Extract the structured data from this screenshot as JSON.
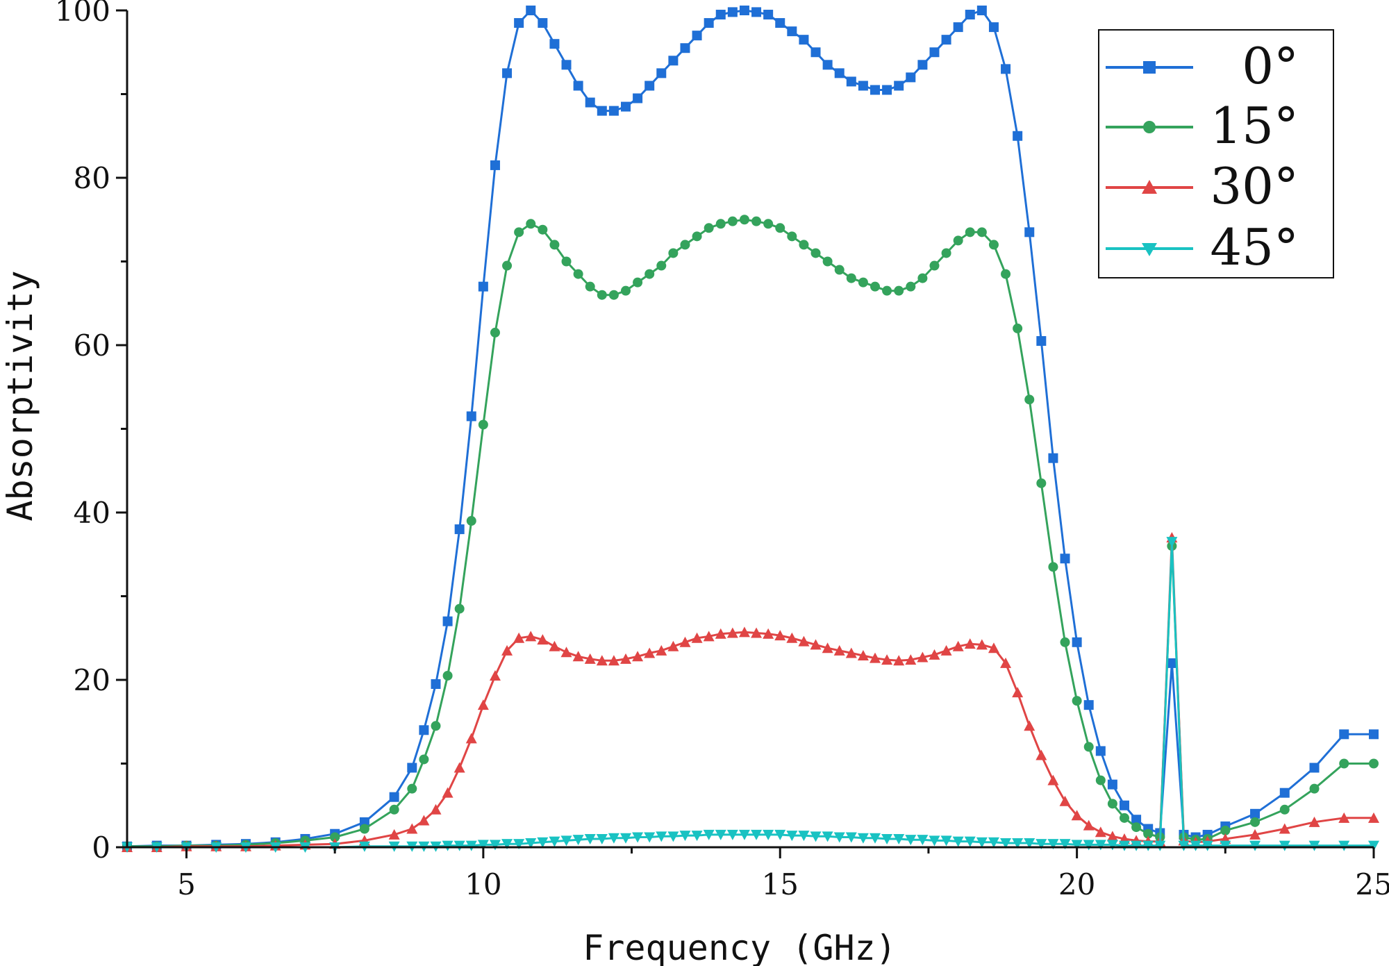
{
  "chart_data": {
    "type": "line",
    "title": "",
    "xlabel": "Frequency (GHz)",
    "ylabel": "Absorptivity",
    "xlim": [
      4,
      25
    ],
    "ylim": [
      0,
      100
    ],
    "xticks": [
      5,
      10,
      15,
      20,
      25
    ],
    "yticks": [
      0,
      20,
      40,
      60,
      80,
      100
    ],
    "legend_position": "top-right",
    "grid": false,
    "series": [
      {
        "name": "0°",
        "color": "#1f6fd6",
        "marker": "square",
        "x": [
          4.0,
          4.5,
          5.0,
          5.5,
          6.0,
          6.5,
          7.0,
          7.5,
          8.0,
          8.5,
          8.8,
          9.0,
          9.2,
          9.4,
          9.6,
          9.8,
          10.0,
          10.2,
          10.4,
          10.6,
          10.8,
          11.0,
          11.2,
          11.4,
          11.6,
          11.8,
          12.0,
          12.2,
          12.4,
          12.6,
          12.8,
          13.0,
          13.2,
          13.4,
          13.6,
          13.8,
          14.0,
          14.2,
          14.4,
          14.6,
          14.8,
          15.0,
          15.2,
          15.4,
          15.6,
          15.8,
          16.0,
          16.2,
          16.4,
          16.6,
          16.8,
          17.0,
          17.2,
          17.4,
          17.6,
          17.8,
          18.0,
          18.2,
          18.4,
          18.6,
          18.8,
          19.0,
          19.2,
          19.4,
          19.6,
          19.8,
          20.0,
          20.2,
          20.4,
          20.6,
          20.8,
          21.0,
          21.2,
          21.4,
          21.6,
          21.8,
          22.0,
          22.2,
          22.5,
          23.0,
          23.5,
          24.0,
          24.5,
          25.0
        ],
        "y": [
          0.1,
          0.2,
          0.2,
          0.3,
          0.4,
          0.6,
          1.0,
          1.6,
          3.0,
          6.0,
          9.5,
          14.0,
          19.5,
          27.0,
          38.0,
          51.5,
          67.0,
          81.5,
          92.5,
          98.5,
          100.0,
          98.5,
          96.0,
          93.5,
          91.0,
          89.0,
          88.0,
          88.0,
          88.5,
          89.5,
          91.0,
          92.5,
          94.0,
          95.5,
          97.0,
          98.5,
          99.5,
          99.8,
          100.0,
          99.8,
          99.5,
          98.5,
          97.5,
          96.5,
          95.0,
          93.5,
          92.5,
          91.5,
          91.0,
          90.5,
          90.5,
          91.0,
          92.0,
          93.5,
          95.0,
          96.5,
          98.0,
          99.5,
          100.0,
          98.0,
          93.0,
          85.0,
          73.5,
          60.5,
          46.5,
          34.5,
          24.5,
          17.0,
          11.5,
          7.5,
          5.0,
          3.3,
          2.2,
          1.7,
          22.0,
          1.5,
          1.2,
          1.5,
          2.5,
          4.0,
          6.5,
          9.5,
          13.5,
          13.5
        ],
        "y_note": "x/y arrays paired by index"
      },
      {
        "name": "15°",
        "color": "#34a35c",
        "marker": "circle",
        "x": [
          4.0,
          4.5,
          5.0,
          5.5,
          6.0,
          6.5,
          7.0,
          7.5,
          8.0,
          8.5,
          8.8,
          9.0,
          9.2,
          9.4,
          9.6,
          9.8,
          10.0,
          10.2,
          10.4,
          10.6,
          10.8,
          11.0,
          11.2,
          11.4,
          11.6,
          11.8,
          12.0,
          12.2,
          12.4,
          12.6,
          12.8,
          13.0,
          13.2,
          13.4,
          13.6,
          13.8,
          14.0,
          14.2,
          14.4,
          14.6,
          14.8,
          15.0,
          15.2,
          15.4,
          15.6,
          15.8,
          16.0,
          16.2,
          16.4,
          16.6,
          16.8,
          17.0,
          17.2,
          17.4,
          17.6,
          17.8,
          18.0,
          18.2,
          18.4,
          18.6,
          18.8,
          19.0,
          19.2,
          19.4,
          19.6,
          19.8,
          20.0,
          20.2,
          20.4,
          20.6,
          20.8,
          21.0,
          21.2,
          21.4,
          21.6,
          21.8,
          22.0,
          22.2,
          22.5,
          23.0,
          23.5,
          24.0,
          24.5,
          25.0
        ],
        "y": [
          0.1,
          0.1,
          0.2,
          0.2,
          0.3,
          0.5,
          0.8,
          1.2,
          2.2,
          4.5,
          7.0,
          10.5,
          14.5,
          20.5,
          28.5,
          39.0,
          50.5,
          61.5,
          69.5,
          73.5,
          74.5,
          73.8,
          72.0,
          70.0,
          68.5,
          67.0,
          66.0,
          66.0,
          66.5,
          67.5,
          68.5,
          69.5,
          71.0,
          72.0,
          73.0,
          74.0,
          74.5,
          74.8,
          75.0,
          74.8,
          74.5,
          74.0,
          73.0,
          72.0,
          71.0,
          70.0,
          69.0,
          68.0,
          67.5,
          67.0,
          66.5,
          66.5,
          67.0,
          68.0,
          69.5,
          71.0,
          72.5,
          73.5,
          73.5,
          72.0,
          68.5,
          62.0,
          53.5,
          43.5,
          33.5,
          24.5,
          17.5,
          12.0,
          8.0,
          5.2,
          3.5,
          2.4,
          1.6,
          1.2,
          36.0,
          1.2,
          0.9,
          1.0,
          2.0,
          3.0,
          4.5,
          7.0,
          10.0,
          10.0
        ]
      },
      {
        "name": "30°",
        "color": "#e04545",
        "marker": "triangle-up",
        "x": [
          4.0,
          4.5,
          5.0,
          5.5,
          6.0,
          6.5,
          7.0,
          7.5,
          8.0,
          8.5,
          8.8,
          9.0,
          9.2,
          9.4,
          9.6,
          9.8,
          10.0,
          10.2,
          10.4,
          10.6,
          10.8,
          11.0,
          11.2,
          11.4,
          11.6,
          11.8,
          12.0,
          12.2,
          12.4,
          12.6,
          12.8,
          13.0,
          13.2,
          13.4,
          13.6,
          13.8,
          14.0,
          14.2,
          14.4,
          14.6,
          14.8,
          15.0,
          15.2,
          15.4,
          15.6,
          15.8,
          16.0,
          16.2,
          16.4,
          16.6,
          16.8,
          17.0,
          17.2,
          17.4,
          17.6,
          17.8,
          18.0,
          18.2,
          18.4,
          18.6,
          18.8,
          19.0,
          19.2,
          19.4,
          19.6,
          19.8,
          20.0,
          20.2,
          20.4,
          20.6,
          20.8,
          21.0,
          21.2,
          21.4,
          21.6,
          21.8,
          22.0,
          22.2,
          22.5,
          23.0,
          23.5,
          24.0,
          24.5,
          25.0
        ],
        "y": [
          0.0,
          0.0,
          0.1,
          0.1,
          0.1,
          0.2,
          0.3,
          0.4,
          0.8,
          1.5,
          2.2,
          3.2,
          4.5,
          6.5,
          9.5,
          13.0,
          17.0,
          20.5,
          23.5,
          25.0,
          25.2,
          24.8,
          24.0,
          23.3,
          22.8,
          22.5,
          22.3,
          22.3,
          22.5,
          22.8,
          23.2,
          23.5,
          24.0,
          24.5,
          25.0,
          25.2,
          25.5,
          25.6,
          25.7,
          25.6,
          25.5,
          25.3,
          25.0,
          24.6,
          24.2,
          23.8,
          23.5,
          23.2,
          22.9,
          22.6,
          22.4,
          22.3,
          22.4,
          22.7,
          23.0,
          23.5,
          24.0,
          24.3,
          24.2,
          23.8,
          22.0,
          18.5,
          14.5,
          11.0,
          8.0,
          5.5,
          3.8,
          2.6,
          1.8,
          1.3,
          1.0,
          0.8,
          0.7,
          0.7,
          37.0,
          0.8,
          0.6,
          0.7,
          1.0,
          1.5,
          2.2,
          3.0,
          3.5,
          3.5
        ]
      },
      {
        "name": "45°",
        "color": "#19c2c2",
        "marker": "triangle-down",
        "x": [
          4.0,
          4.5,
          5.0,
          5.5,
          6.0,
          6.5,
          7.0,
          7.5,
          8.0,
          8.5,
          8.8,
          9.0,
          9.2,
          9.4,
          9.6,
          9.8,
          10.0,
          10.2,
          10.4,
          10.6,
          10.8,
          11.0,
          11.2,
          11.4,
          11.6,
          11.8,
          12.0,
          12.2,
          12.4,
          12.6,
          12.8,
          13.0,
          13.2,
          13.4,
          13.6,
          13.8,
          14.0,
          14.2,
          14.4,
          14.6,
          14.8,
          15.0,
          15.2,
          15.4,
          15.6,
          15.8,
          16.0,
          16.2,
          16.4,
          16.6,
          16.8,
          17.0,
          17.2,
          17.4,
          17.6,
          17.8,
          18.0,
          18.2,
          18.4,
          18.6,
          18.8,
          19.0,
          19.2,
          19.4,
          19.6,
          19.8,
          20.0,
          20.2,
          20.4,
          20.6,
          20.8,
          21.0,
          21.2,
          21.4,
          21.6,
          21.8,
          22.0,
          22.2,
          22.5,
          23.0,
          23.5,
          24.0,
          24.5,
          25.0
        ],
        "y": [
          0.0,
          0.0,
          0.0,
          0.0,
          0.0,
          0.0,
          0.0,
          0.0,
          0.1,
          0.1,
          0.1,
          0.1,
          0.1,
          0.2,
          0.2,
          0.2,
          0.3,
          0.3,
          0.4,
          0.4,
          0.5,
          0.6,
          0.7,
          0.8,
          0.9,
          1.0,
          1.0,
          1.1,
          1.1,
          1.2,
          1.2,
          1.3,
          1.3,
          1.4,
          1.4,
          1.5,
          1.5,
          1.5,
          1.5,
          1.5,
          1.5,
          1.5,
          1.4,
          1.4,
          1.3,
          1.3,
          1.2,
          1.2,
          1.1,
          1.1,
          1.0,
          1.0,
          0.9,
          0.9,
          0.8,
          0.8,
          0.7,
          0.7,
          0.6,
          0.6,
          0.5,
          0.5,
          0.5,
          0.4,
          0.4,
          0.4,
          0.3,
          0.3,
          0.3,
          0.3,
          0.2,
          0.2,
          0.2,
          0.2,
          36.5,
          0.2,
          0.2,
          0.2,
          0.2,
          0.2,
          0.2,
          0.2,
          0.2,
          0.2
        ]
      }
    ],
    "tick_labels_x": [
      "5",
      "10",
      "15",
      "20",
      "25"
    ],
    "tick_labels_y": [
      "0",
      "20",
      "40",
      "60",
      "80",
      "100"
    ]
  }
}
